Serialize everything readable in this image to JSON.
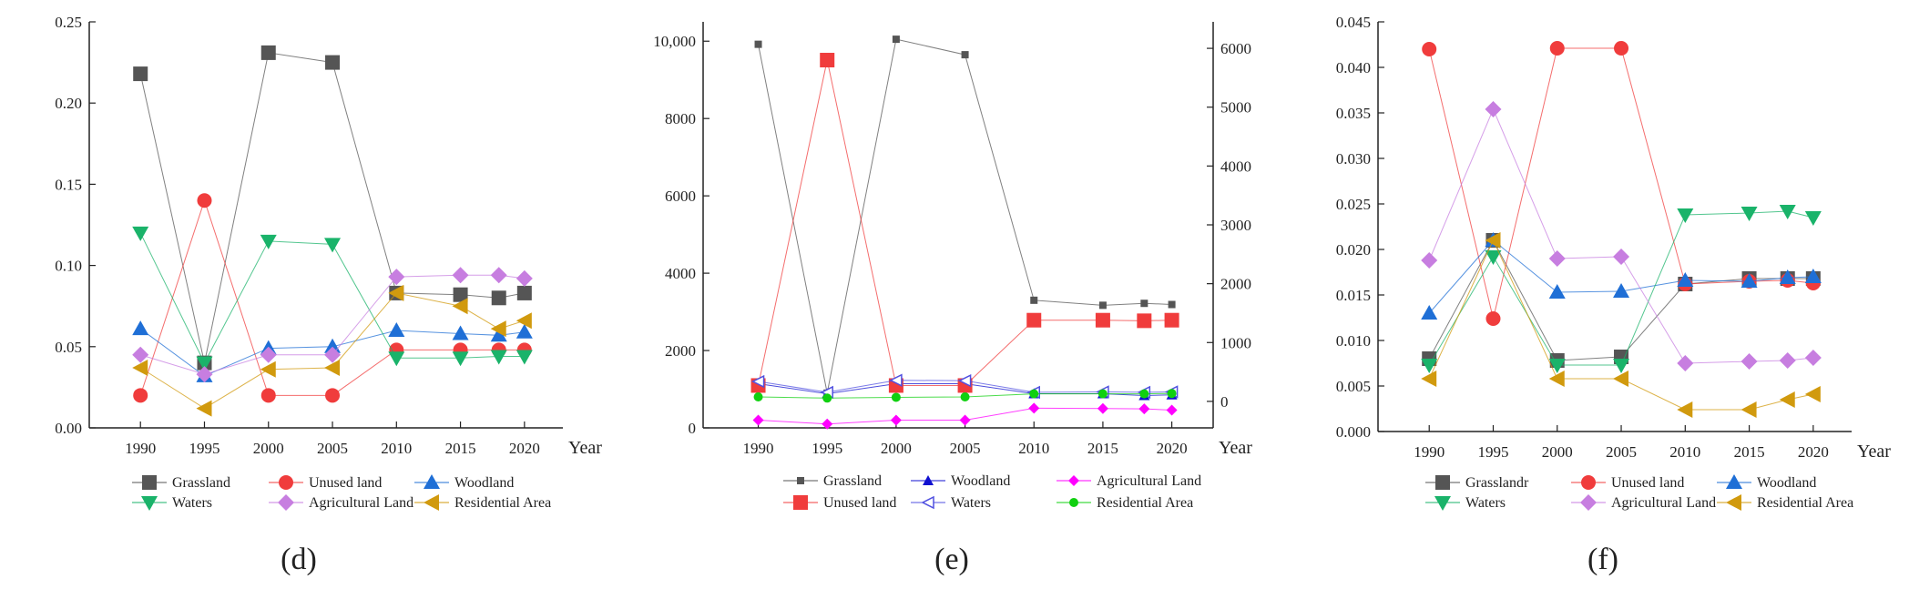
{
  "chart_data": [
    {
      "type": "line",
      "panel_label": "(d)",
      "x": [
        1990,
        1995,
        2000,
        2005,
        2010,
        2015,
        2018,
        2020
      ],
      "x_tick_labels": [
        "1990",
        "1995",
        "2000",
        "2005",
        "2010",
        "2015",
        "2020"
      ],
      "xlabel": "Year",
      "ylabel": "",
      "ylim": [
        0,
        0.25
      ],
      "y_ticks": [
        0,
        0.05,
        0.1,
        0.15,
        0.2,
        0.25
      ],
      "y_tick_labels": [
        "0.00",
        "0.05",
        "0.10",
        "0.15",
        "0.20",
        "0.25"
      ],
      "series": [
        {
          "name": "Grassland",
          "color": "#555555",
          "marker": "square",
          "values": [
            0.218,
            0.04,
            0.231,
            0.225,
            0.083,
            0.082,
            0.08,
            0.083
          ]
        },
        {
          "name": "Unused land",
          "color": "#f03c3c",
          "marker": "circle",
          "values": [
            0.02,
            0.14,
            0.02,
            0.02,
            0.048,
            0.048,
            0.048,
            0.048
          ]
        },
        {
          "name": "Woodland",
          "color": "#1f6fd6",
          "marker": "triangle-up",
          "values": [
            0.061,
            0.032,
            0.049,
            0.05,
            0.06,
            0.058,
            0.057,
            0.059
          ]
        },
        {
          "name": "Waters",
          "color": "#1ab36a",
          "marker": "triangle-down",
          "values": [
            0.12,
            0.04,
            0.115,
            0.113,
            0.043,
            0.043,
            0.044,
            0.044
          ]
        },
        {
          "name": "Agricultural Land",
          "color": "#c77ee0",
          "marker": "diamond",
          "values": [
            0.045,
            0.033,
            0.045,
            0.045,
            0.093,
            0.094,
            0.094,
            0.092
          ]
        },
        {
          "name": "Residential Area",
          "color": "#d19a0e",
          "marker": "triangle-left",
          "values": [
            0.037,
            0.012,
            0.036,
            0.037,
            0.083,
            0.075,
            0.061,
            0.066
          ]
        }
      ]
    },
    {
      "type": "line",
      "panel_label": "(e)",
      "dual_axis": true,
      "x": [
        1990,
        1995,
        2000,
        2005,
        2010,
        2015,
        2018,
        2020
      ],
      "x_tick_labels": [
        "1990",
        "1995",
        "2000",
        "2005",
        "2010",
        "2015",
        "2020"
      ],
      "xlabel": "Year",
      "ylim": [
        0,
        10500
      ],
      "y_ticks": [
        0,
        2000,
        4000,
        6000,
        8000,
        10000
      ],
      "y_tick_labels": [
        "0",
        "2000",
        "4000",
        "6000",
        "8000",
        "10,000"
      ],
      "y2lim": [
        -450,
        6450
      ],
      "y2_ticks": [
        0,
        1000,
        2000,
        3000,
        4000,
        5000,
        6000
      ],
      "y2_tick_labels": [
        "0",
        "1000",
        "2000",
        "3000",
        "4000",
        "5000",
        "6000"
      ],
      "series": [
        {
          "name": "Grassland",
          "color": "#555555",
          "marker": "small-square",
          "axis": "left",
          "values": [
            9920,
            900,
            10050,
            9650,
            3300,
            3170,
            3220,
            3190
          ]
        },
        {
          "name": "Woodland",
          "color": "#1010d0",
          "marker": "small-triangle-up",
          "axis": "right",
          "values": [
            300,
            130,
            300,
            300,
            130,
            130,
            100,
            110
          ]
        },
        {
          "name": "Agricultural Land",
          "color": "#ff00ff",
          "marker": "small-diamond",
          "axis": "left",
          "values": [
            200,
            100,
            200,
            200,
            510,
            500,
            490,
            460
          ]
        },
        {
          "name": "Unused land",
          "color": "#f03c3c",
          "marker": "square",
          "axis": "right",
          "values": [
            270,
            5800,
            270,
            270,
            1380,
            1380,
            1370,
            1380
          ]
        },
        {
          "name": "Waters",
          "color": "#5050e0",
          "marker": "open-triangle-left",
          "axis": "left",
          "values": [
            1200,
            920,
            1230,
            1220,
            920,
            930,
            920,
            930
          ]
        },
        {
          "name": "Residential Area",
          "color": "#10d010",
          "marker": "small-circle",
          "axis": "left",
          "values": [
            800,
            770,
            790,
            800,
            880,
            880,
            880,
            890
          ]
        }
      ]
    },
    {
      "type": "line",
      "panel_label": "(f)",
      "x": [
        1990,
        1995,
        2000,
        2005,
        2010,
        2015,
        2018,
        2020
      ],
      "x_tick_labels": [
        "1990",
        "1995",
        "2000",
        "2005",
        "2010",
        "2015",
        "2020"
      ],
      "xlabel": "Year",
      "ylim": [
        0,
        0.045
      ],
      "y_ticks": [
        0,
        0.005,
        0.01,
        0.015,
        0.02,
        0.025,
        0.03,
        0.035,
        0.04,
        0.045
      ],
      "y_tick_labels": [
        "0.000",
        "0.005",
        "0.010",
        "0.015",
        "0.020",
        "0.025",
        "0.030",
        "0.035",
        "0.040",
        "0.045"
      ],
      "series": [
        {
          "name": "Grasslandr",
          "color": "#555555",
          "marker": "square",
          "values": [
            0.008,
            0.021,
            0.0078,
            0.0082,
            0.0162,
            0.0168,
            0.0168,
            0.0168
          ]
        },
        {
          "name": "Unused land",
          "color": "#f03c3c",
          "marker": "circle",
          "values": [
            0.042,
            0.0124,
            0.0421,
            0.0421,
            0.0162,
            0.0165,
            0.0166,
            0.0163
          ]
        },
        {
          "name": "Woodland",
          "color": "#1f6fd6",
          "marker": "triangle-up",
          "values": [
            0.013,
            0.021,
            0.0153,
            0.0154,
            0.0166,
            0.0165,
            0.0169,
            0.017
          ]
        },
        {
          "name": "Waters",
          "color": "#1ab36a",
          "marker": "triangle-down",
          "values": [
            0.0073,
            0.0192,
            0.0073,
            0.0073,
            0.0238,
            0.024,
            0.0242,
            0.0235
          ]
        },
        {
          "name": "Agricultural Land",
          "color": "#c77ee0",
          "marker": "diamond",
          "values": [
            0.0188,
            0.0354,
            0.019,
            0.0192,
            0.0075,
            0.0077,
            0.0078,
            0.0081
          ]
        },
        {
          "name": "Residential Area",
          "color": "#d19a0e",
          "marker": "triangle-left",
          "values": [
            0.0058,
            0.021,
            0.0058,
            0.0058,
            0.0024,
            0.0024,
            0.0035,
            0.0041
          ]
        }
      ]
    }
  ]
}
